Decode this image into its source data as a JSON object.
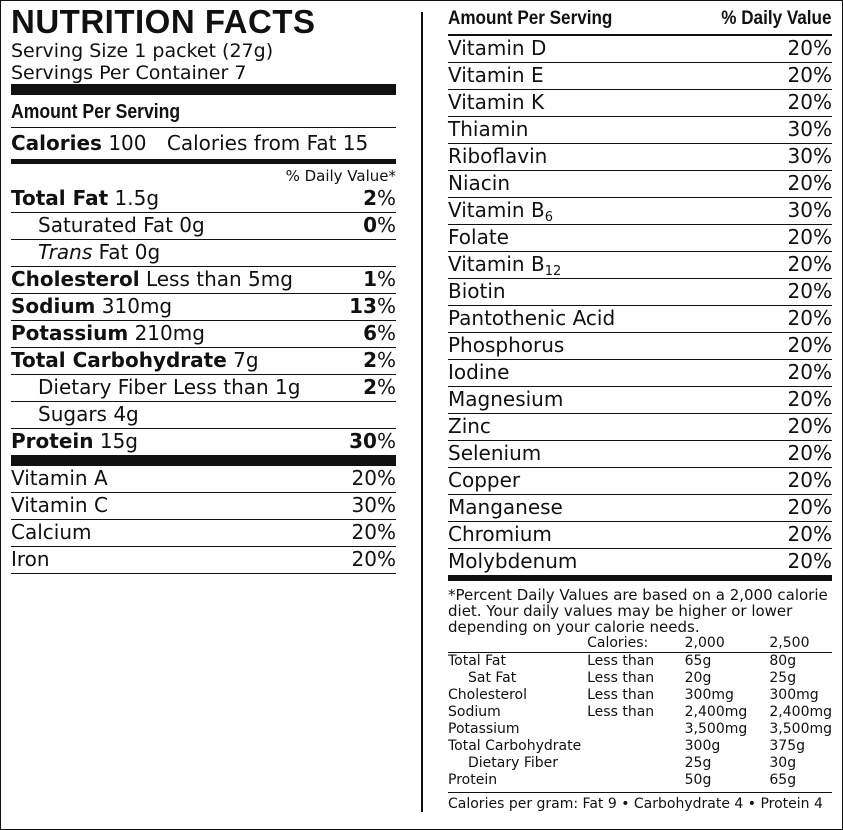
{
  "left": {
    "title": "NUTRITION FACTS",
    "serving_size": "Serving Size 1 packet (27g)",
    "servings_per_container": "Servings Per Container 7",
    "amount_per_serving": "Amount Per Serving",
    "calories_label": "Calories",
    "calories_value": "100",
    "calories_from_fat": "Calories from Fat 15",
    "dv_header": "% Daily Value*",
    "nutrients": [
      {
        "bold": "Total Fat",
        "rest": "1.5g",
        "pct_num": "2",
        "pct_sign": "%"
      },
      {
        "bold": "",
        "rest": "Saturated Fat 0g",
        "pct_num": "0",
        "pct_sign": "%"
      },
      {
        "italic": "Trans",
        "rest": "Fat 0g",
        "pct_num": "",
        "pct_sign": ""
      },
      {
        "bold": "Cholesterol",
        "rest": "Less than 5mg",
        "pct_num": "1",
        "pct_sign": "%"
      },
      {
        "bold": "Sodium",
        "rest": "310mg",
        "pct_num": "13",
        "pct_sign": "%"
      },
      {
        "bold": "Potassium",
        "rest": "210mg",
        "pct_num": "6",
        "pct_sign": "%"
      },
      {
        "bold": "Total Carbohydrate",
        "rest": "7g",
        "pct_num": "2",
        "pct_sign": "%"
      },
      {
        "bold": "",
        "rest": "Dietary Fiber Less than 1g",
        "pct_num": "2",
        "pct_sign": "%"
      },
      {
        "bold": "",
        "rest": "Sugars 4g",
        "pct_num": "",
        "pct_sign": ""
      },
      {
        "bold": "Protein",
        "rest": "15g",
        "pct_num": "30",
        "pct_sign": "%"
      }
    ],
    "vitamins": [
      {
        "name": "Vitamin A",
        "pct": "20%"
      },
      {
        "name": "Vitamin C",
        "pct": "30%"
      },
      {
        "name": "Calcium",
        "pct": "20%"
      },
      {
        "name": "Iron",
        "pct": "20%"
      }
    ]
  },
  "right": {
    "header_left": "Amount Per Serving",
    "header_right": "% Daily Value",
    "vitamins": [
      {
        "name": "Vitamin D",
        "pct": "20%"
      },
      {
        "name": "Vitamin E",
        "pct": "20%"
      },
      {
        "name": "Vitamin K",
        "pct": "20%"
      },
      {
        "name": "Thiamin",
        "pct": "30%"
      },
      {
        "name": "Riboflavin",
        "pct": "30%"
      },
      {
        "name": "Niacin",
        "pct": "20%"
      },
      {
        "name": "Vitamin B",
        "sub": "6",
        "pct": "30%"
      },
      {
        "name": "Folate",
        "pct": "20%"
      },
      {
        "name": "Vitamin B",
        "sub": "12",
        "pct": "20%"
      },
      {
        "name": "Biotin",
        "pct": "20%"
      },
      {
        "name": "Pantothenic Acid",
        "pct": "20%"
      },
      {
        "name": "Phosphorus",
        "pct": "20%"
      },
      {
        "name": "Iodine",
        "pct": "20%"
      },
      {
        "name": "Magnesium",
        "pct": "20%"
      },
      {
        "name": "Zinc",
        "pct": "20%"
      },
      {
        "name": "Selenium",
        "pct": "20%"
      },
      {
        "name": "Copper",
        "pct": "20%"
      },
      {
        "name": "Manganese",
        "pct": "20%"
      },
      {
        "name": "Chromium",
        "pct": "20%"
      },
      {
        "name": "Molybdenum",
        "pct": "20%"
      }
    ],
    "footnote": "*Percent Daily Values are based on a 2,000 calorie diet. Your daily values may be higher or lower depending on your calorie needs.",
    "dv_table": {
      "header": [
        "",
        "Calories:",
        "2,000",
        "2,500"
      ],
      "rows": [
        [
          "Total Fat",
          "Less than",
          "65g",
          "80g"
        ],
        [
          "   Sat Fat",
          "Less than",
          "20g",
          "25g"
        ],
        [
          "Cholesterol",
          "Less than",
          "300mg",
          "300mg"
        ],
        [
          "Sodium",
          "Less than",
          "2,400mg",
          "2,400mg"
        ],
        [
          "Potassium",
          "",
          "3,500mg",
          "3,500mg"
        ],
        [
          "Total Carbohydrate",
          "",
          "300g",
          "375g"
        ],
        [
          "   Dietary Fiber",
          "",
          "25g",
          "30g"
        ],
        [
          "Protein",
          "",
          "50g",
          "65g"
        ]
      ]
    },
    "calories_per_gram": "Calories per gram: Fat 9 • Carbohydrate 4 • Protein 4"
  }
}
